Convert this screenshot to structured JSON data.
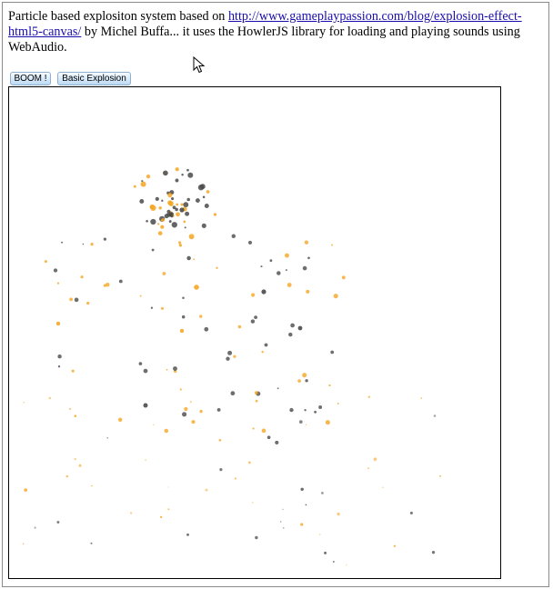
{
  "intro": {
    "prefix": "Particle based explositon system based on ",
    "link_text": "http://www.gameplaypassion.com/blog/explosion-effect-html5-canvas/",
    "suffix": " by Michel Buffa... it uses the HowlerJS library for loading and playing sounds using WebAudio."
  },
  "buttons": {
    "boom_label": "BOOM !",
    "basic_label": "Basic Explosion"
  },
  "colors": {
    "orange_particle": "#f5a623",
    "dark_particle": "#4a4a4a",
    "link": "#1a0dab"
  }
}
